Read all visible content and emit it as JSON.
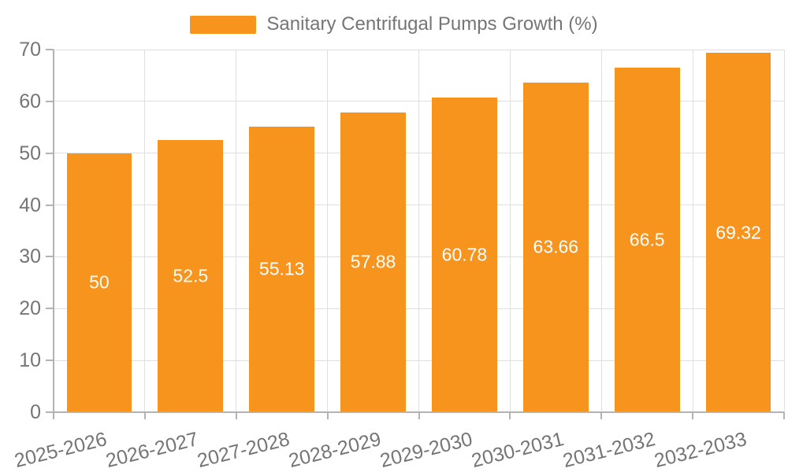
{
  "colors": {
    "bar": "#f7941e",
    "axis_line": "#b3b3b3",
    "gridline": "#e0e0e0",
    "tick_text": "#757575",
    "bar_label_text": "#ffffff",
    "background": "#ffffff"
  },
  "legend": {
    "items": [
      {
        "label": "Sanitary Centrifugal Pumps Growth (%)",
        "swatch_color": "#f7941e"
      }
    ]
  },
  "chart_data": {
    "type": "bar",
    "title": "Sanitary Centrifugal Pumps Growth (%)",
    "xlabel": "",
    "ylabel": "",
    "categories": [
      "2025-2026",
      "2026-2027",
      "2027-2028",
      "2028-2029",
      "2029-2030",
      "2030-2031",
      "2031-2032",
      "2032-2033"
    ],
    "values": [
      50,
      52.5,
      55.13,
      57.88,
      60.78,
      63.66,
      66.5,
      69.32
    ],
    "value_labels": [
      "50",
      "52.5",
      "55.13",
      "57.88",
      "60.78",
      "63.66",
      "66.5",
      "69.32"
    ],
    "ylim": [
      0,
      70
    ],
    "yticks": [
      0,
      10,
      20,
      30,
      40,
      50,
      60,
      70
    ],
    "grid": "on",
    "legend_position": "top-center",
    "bar_labels_position": "inside-center",
    "x_tick_rotation_deg": -14
  }
}
